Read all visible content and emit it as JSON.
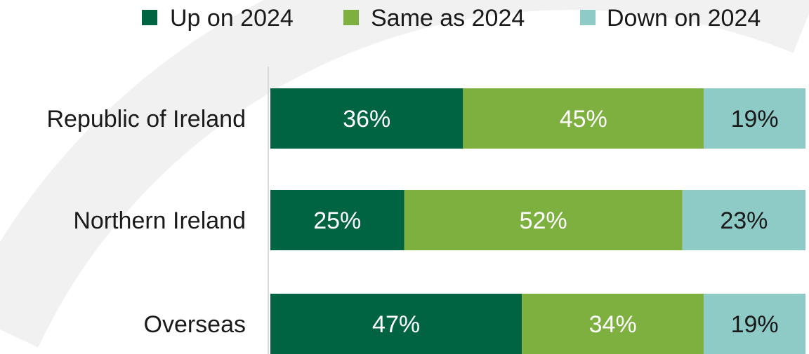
{
  "chart_data": {
    "type": "bar",
    "orientation": "horizontal",
    "stacked": true,
    "percent_stacked": true,
    "categories": [
      "Republic of Ireland",
      "Northern Ireland",
      "Overseas"
    ],
    "series": [
      {
        "name": "Up on 2024",
        "values": [
          36,
          25,
          47
        ],
        "color": "#006341",
        "label_color": "#ffffff"
      },
      {
        "name": "Same as 2024",
        "values": [
          45,
          52,
          34
        ],
        "color": "#7DB03F",
        "label_color": "#ffffff"
      },
      {
        "name": "Down on 2024",
        "values": [
          19,
          23,
          19
        ],
        "color": "#8ECAC6",
        "label_color": "#1a1a1a"
      }
    ],
    "value_suffix": "%",
    "xlim": [
      0,
      100
    ],
    "legend_position": "top",
    "grid": false,
    "title": "",
    "xlabel": "",
    "ylabel": ""
  },
  "background": {
    "arc_color": "#f1f1f1",
    "axis_color": "#d9d9d9"
  }
}
